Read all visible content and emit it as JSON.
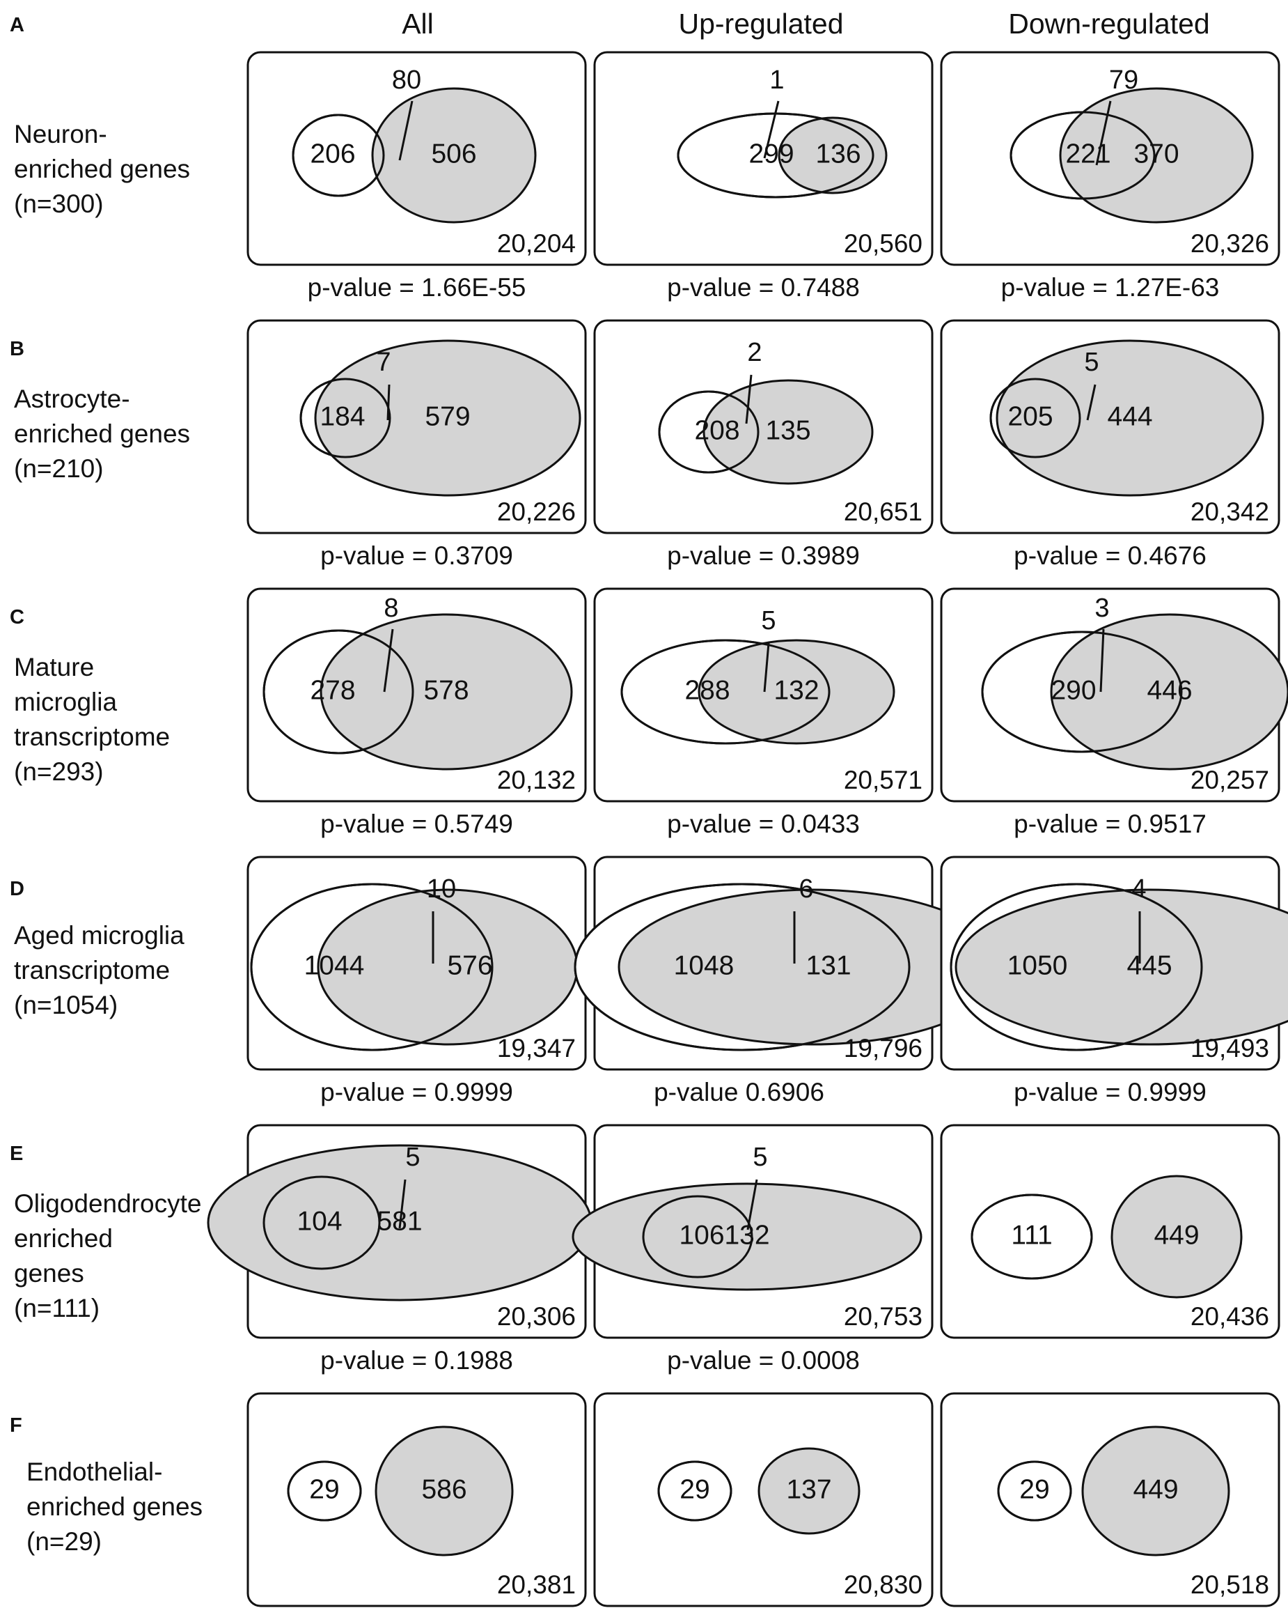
{
  "columns": [
    "All",
    "Up-regulated",
    "Down-regulated"
  ],
  "rows": [
    {
      "letter": "A",
      "label_lines": [
        "Neuron-",
        "enriched genes",
        "(n=300)"
      ],
      "panels": [
        {
          "left": "206",
          "right": "506",
          "overlap": "80",
          "background": "20,204",
          "pvalue": "p-value = 1.66E-55"
        },
        {
          "left": "299",
          "right": "136",
          "overlap": "1",
          "background": "20,560",
          "pvalue": "p-value = 0.7488"
        },
        {
          "left": "221",
          "right": "370",
          "overlap": "79",
          "background": "20,326",
          "pvalue": "p-value = 1.27E-63"
        }
      ]
    },
    {
      "letter": "B",
      "label_lines": [
        "Astrocyte-",
        "enriched genes",
        "(n=210)"
      ],
      "panels": [
        {
          "left": "184",
          "right": "579",
          "overlap": "7",
          "background": "20,226",
          "pvalue": "p-value = 0.3709"
        },
        {
          "left": "208",
          "right": "135",
          "overlap": "2",
          "background": "20,651",
          "pvalue": "p-value = 0.3989"
        },
        {
          "left": "205",
          "right": "444",
          "overlap": "5",
          "background": "20,342",
          "pvalue": "p-value = 0.4676"
        }
      ]
    },
    {
      "letter": "C",
      "label_lines": [
        "Mature",
        "microglia",
        "transcriptome",
        "(n=293)"
      ],
      "panels": [
        {
          "left": "278",
          "right": "578",
          "overlap": "8",
          "background": "20,132",
          "pvalue": "p-value = 0.5749"
        },
        {
          "left": "288",
          "right": "132",
          "overlap": "5",
          "background": "20,571",
          "pvalue": "p-value = 0.0433"
        },
        {
          "left": "290",
          "right": "446",
          "overlap": "3",
          "background": "20,257",
          "pvalue": "p-value = 0.9517"
        }
      ]
    },
    {
      "letter": "D",
      "label_lines": [
        "Aged microglia",
        "transcriptome",
        "(n=1054)"
      ],
      "panels": [
        {
          "left": "1044",
          "right": "576",
          "overlap": "10",
          "background": "19,347",
          "pvalue": "p-value = 0.9999"
        },
        {
          "left": "1048",
          "right": "131",
          "overlap": "6",
          "background": "19,796",
          "pvalue": "p-value 0.6906"
        },
        {
          "left": "1050",
          "right": "445",
          "overlap": "4",
          "background": "19,493",
          "pvalue": "p-value = 0.9999"
        }
      ]
    },
    {
      "letter": "E",
      "label_lines": [
        "Oligodendrocyte",
        "enriched",
        "genes",
        "(n=111)"
      ],
      "panels": [
        {
          "left": "104",
          "right": "581",
          "overlap": "5",
          "background": "20,306",
          "pvalue": "p-value = 0.1988"
        },
        {
          "left": "106",
          "right": "132",
          "overlap": "5",
          "background": "20,753",
          "pvalue": "p-value = 0.0008"
        },
        {
          "left": "111",
          "right": "449",
          "overlap": "",
          "background": "20,436",
          "pvalue": ""
        }
      ]
    },
    {
      "letter": "F",
      "label_lines": [
        "Endothelial-",
        "enriched genes",
        "(n=29)"
      ],
      "panels": [
        {
          "left": "29",
          "right": "586",
          "overlap": "",
          "background": "20,381",
          "pvalue": ""
        },
        {
          "left": "29",
          "right": "137",
          "overlap": "",
          "background": "20,830",
          "pvalue": ""
        },
        {
          "left": "29",
          "right": "449",
          "overlap": "",
          "background": "20,518",
          "pvalue": ""
        }
      ]
    }
  ],
  "colors": {
    "gene_set_fill": "#ffffff",
    "deg_fill": "#d4d4d4",
    "stroke": "#111111"
  }
}
